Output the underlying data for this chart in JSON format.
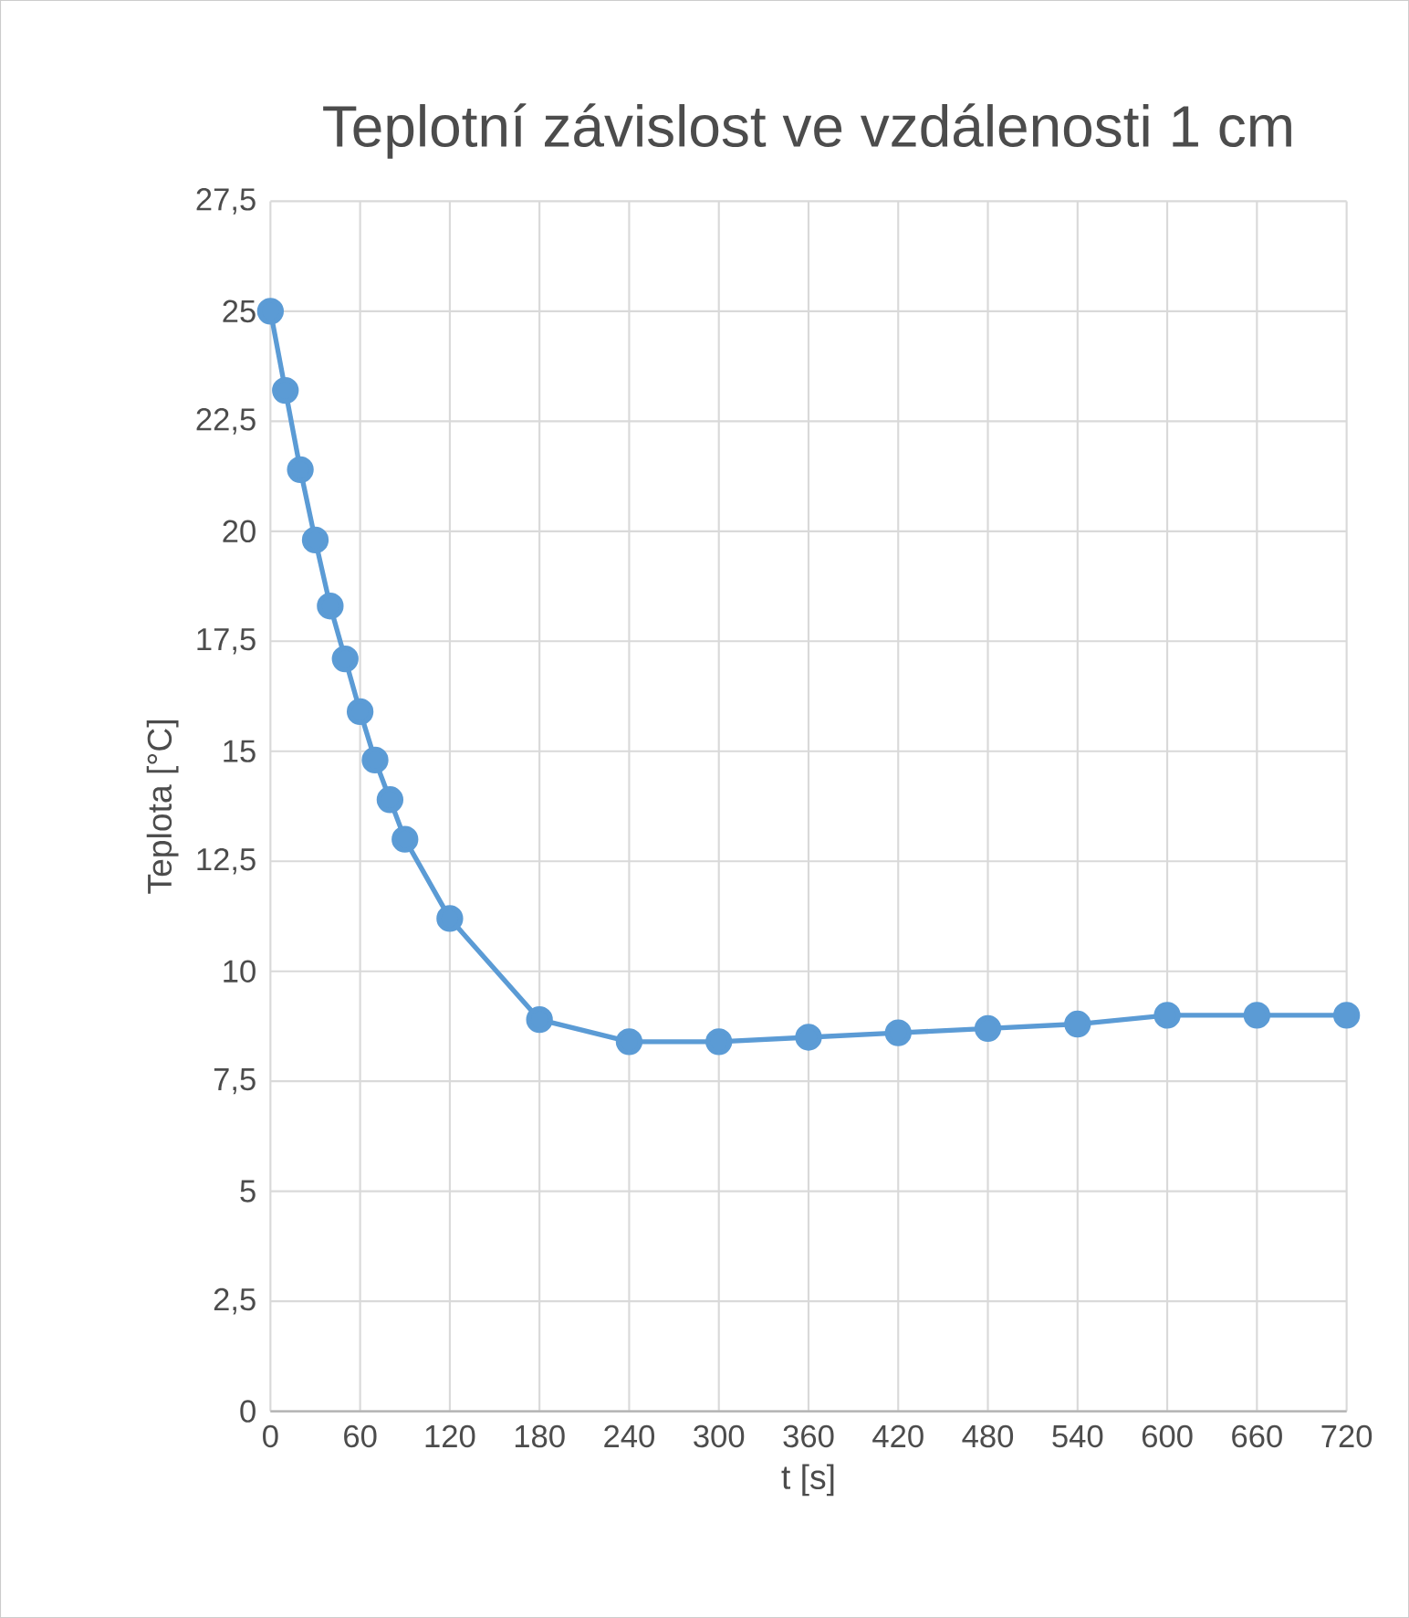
{
  "chart_data": {
    "type": "line",
    "title": "Teplotní závislost ve vzdálenosti 1 cm",
    "xlabel": "t [s]",
    "ylabel": "Teplota [°C]",
    "x": [
      0,
      10,
      20,
      30,
      40,
      50,
      60,
      70,
      80,
      90,
      120,
      180,
      240,
      300,
      360,
      420,
      480,
      540,
      600,
      660,
      720
    ],
    "series": [
      {
        "color": "#5b9bd5",
        "values": [
          25,
          23.2,
          21.4,
          19.8,
          18.3,
          17.1,
          15.9,
          14.8,
          13.9,
          13.0,
          11.2,
          8.9,
          8.4,
          8.4,
          8.5,
          8.6,
          8.7,
          8.8,
          9.0,
          9.0,
          9.0
        ]
      }
    ],
    "xlim": [
      0,
      720
    ],
    "xticks": [
      0,
      60,
      120,
      180,
      240,
      300,
      360,
      420,
      480,
      540,
      600,
      660,
      720
    ],
    "ylim": [
      0,
      27.5
    ],
    "yticks": [
      0,
      {
        "value": 2.5,
        "label": "2,5"
      },
      5,
      {
        "value": 7.5,
        "label": "7,5"
      },
      10,
      {
        "value": 12.5,
        "label": "12,5"
      },
      15,
      {
        "value": 17.5,
        "label": "17,5"
      },
      20,
      {
        "value": 22.5,
        "label": "22,5"
      },
      25,
      {
        "value": 27.5,
        "label": "27,5"
      }
    ],
    "grid": true,
    "marker": "circle",
    "line_style": "solid"
  }
}
